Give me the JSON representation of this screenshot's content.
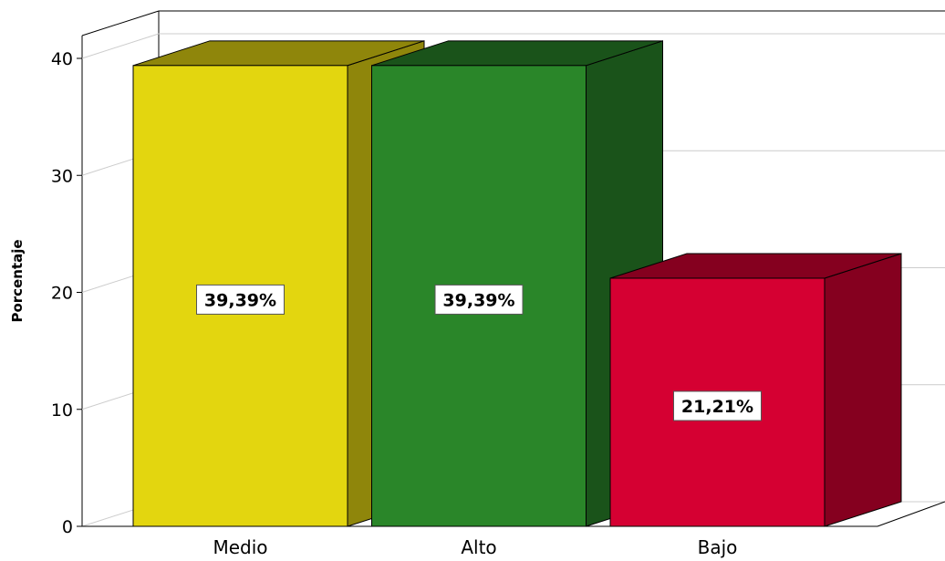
{
  "chart_data": {
    "type": "bar",
    "title": "",
    "xlabel": "",
    "ylabel": "Porcentaje",
    "categories": [
      "Medio",
      "Alto",
      "Bajo"
    ],
    "values": [
      39.39,
      39.39,
      21.21
    ],
    "data_labels": [
      "39,39%",
      "39,39%",
      "21,21%"
    ],
    "ylim": [
      0,
      40
    ],
    "yticks": [
      0,
      10,
      20,
      30,
      40
    ],
    "ytick_labels": [
      "0",
      "10",
      "20",
      "30",
      "40"
    ],
    "grid": true,
    "style": "3d",
    "colors": {
      "front": [
        "#e3d60f",
        "#2a8629",
        "#d50032"
      ],
      "side": [
        "#8f860b",
        "#1a531a",
        "#85001f"
      ],
      "top": [
        "#8f860b",
        "#1a531a",
        "#85001f"
      ]
    }
  }
}
